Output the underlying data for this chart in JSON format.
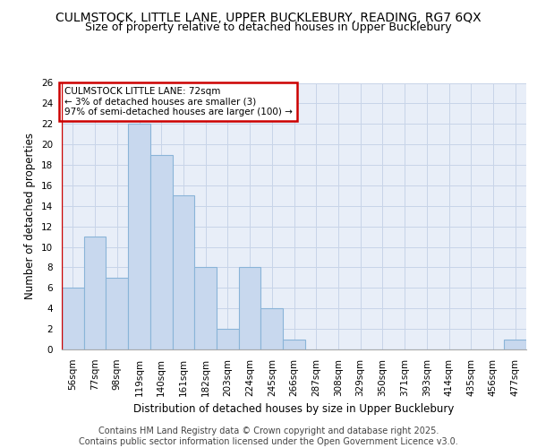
{
  "title1": "CULMSTOCK, LITTLE LANE, UPPER BUCKLEBURY, READING, RG7 6QX",
  "title2": "Size of property relative to detached houses in Upper Bucklebury",
  "xlabel": "Distribution of detached houses by size in Upper Bucklebury",
  "ylabel": "Number of detached properties",
  "categories": [
    "56sqm",
    "77sqm",
    "98sqm",
    "119sqm",
    "140sqm",
    "161sqm",
    "182sqm",
    "203sqm",
    "224sqm",
    "245sqm",
    "266sqm",
    "287sqm",
    "308sqm",
    "329sqm",
    "350sqm",
    "371sqm",
    "393sqm",
    "414sqm",
    "435sqm",
    "456sqm",
    "477sqm"
  ],
  "values": [
    6,
    11,
    7,
    22,
    19,
    15,
    8,
    2,
    8,
    4,
    1,
    0,
    0,
    0,
    0,
    0,
    0,
    0,
    0,
    0,
    1
  ],
  "bar_color": "#c8d8ee",
  "bar_edge_color": "#8ab4d8",
  "annotation_text": "CULMSTOCK LITTLE LANE: 72sqm\n← 3% of detached houses are smaller (3)\n97% of semi-detached houses are larger (100) →",
  "annotation_box_color": "#ffffff",
  "annotation_box_edge_color": "#cc0000",
  "red_line_x": 0,
  "ylim": [
    0,
    26
  ],
  "yticks": [
    0,
    2,
    4,
    6,
    8,
    10,
    12,
    14,
    16,
    18,
    20,
    22,
    24,
    26
  ],
  "grid_color": "#c8d4e8",
  "background_color": "#e8eef8",
  "footer1": "Contains HM Land Registry data © Crown copyright and database right 2025.",
  "footer2": "Contains public sector information licensed under the Open Government Licence v3.0.",
  "title_fontsize": 10,
  "subtitle_fontsize": 9,
  "axis_label_fontsize": 8.5,
  "tick_fontsize": 7.5,
  "footer_fontsize": 7
}
